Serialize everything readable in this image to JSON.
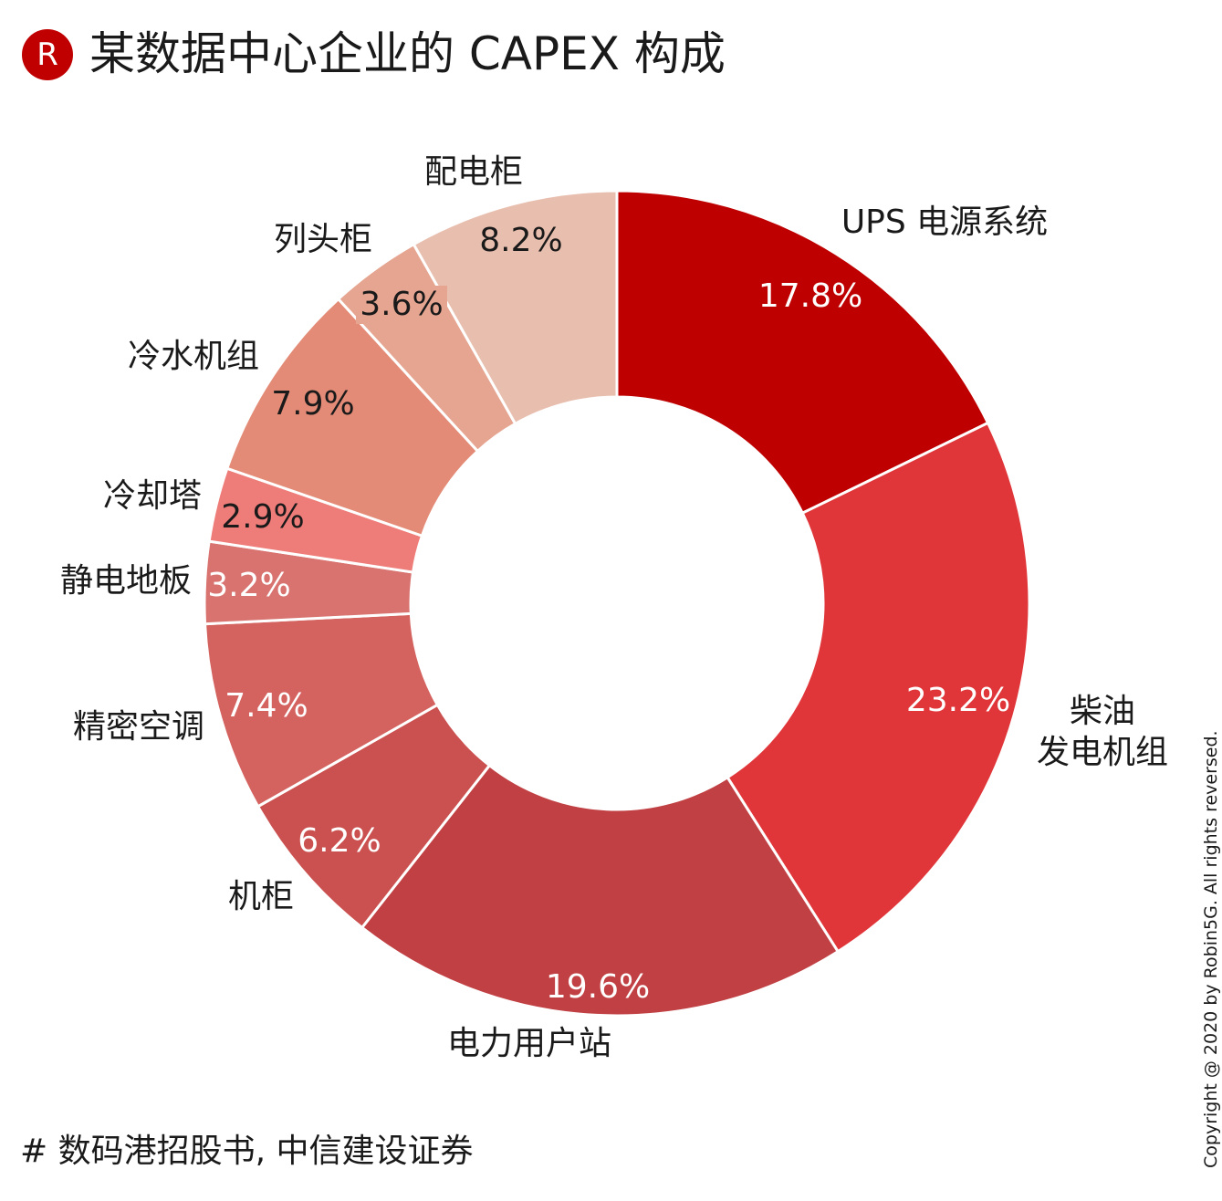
{
  "header": {
    "logo_letter": "R",
    "title": "某数据中心企业的 CAPEX 构成"
  },
  "footer": {
    "source": "# 数码港招股书, 中信建设证券",
    "copyright": "Copyright @ 2020 by Robin5G. All rights reversed."
  },
  "chart_data": {
    "type": "pie",
    "subtype": "donut",
    "title": "某数据中心企业的 CAPEX 构成",
    "direction": "clockwise from top",
    "categories": [
      "UPS 电源系统",
      "柴油发电机组",
      "电力用户站",
      "机柜",
      "精密空调",
      "静电地板",
      "冷却塔",
      "冷水机组",
      "列头柜",
      "配电柜"
    ],
    "values": [
      17.8,
      23.2,
      19.6,
      6.2,
      7.4,
      3.2,
      2.9,
      7.9,
      3.6,
      8.2
    ],
    "value_labels": [
      "17.8%",
      "23.2%",
      "19.6%",
      "6.2%",
      "7.4%",
      "3.2%",
      "2.9%",
      "7.9%",
      "3.6%",
      "8.2%"
    ],
    "category_lines": [
      [
        "UPS 电源系统"
      ],
      [
        "柴油",
        "发电机组"
      ],
      [
        "电力用户站"
      ],
      [
        "机柜"
      ],
      [
        "精密空调"
      ],
      [
        "静电地板"
      ],
      [
        "冷却塔"
      ],
      [
        "冷水机组"
      ],
      [
        "列头柜"
      ],
      [
        "配电柜"
      ]
    ],
    "colors": [
      "#bf0000",
      "#e0363a",
      "#c14043",
      "#cb5150",
      "#d4625f",
      "#d87370",
      "#ee7c79",
      "#e38b76",
      "#e6a591",
      "#e8beae"
    ],
    "label_colors": [
      "#ffffff",
      "#ffffff",
      "#ffffff",
      "#ffffff",
      "#ffffff",
      "#ffffff",
      "#1a1a1a",
      "#1a1a1a",
      "#1a1a1a",
      "#1a1a1a"
    ],
    "unit": "%"
  }
}
